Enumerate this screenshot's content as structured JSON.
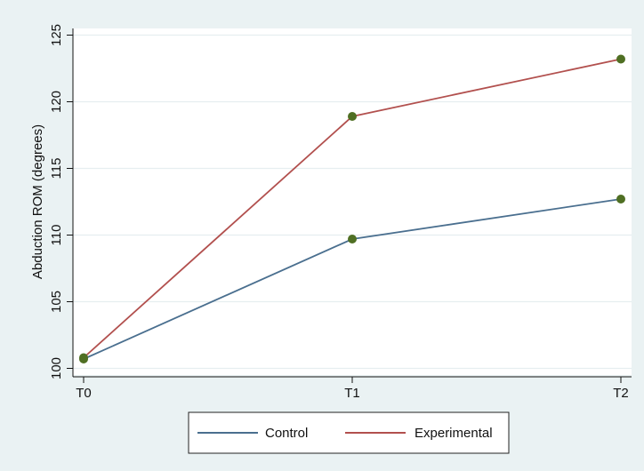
{
  "chart_data": {
    "type": "line",
    "title": "",
    "xlabel": "",
    "ylabel": "Abduction ROM (degrees)",
    "categories": [
      "T0",
      "T1",
      "T2"
    ],
    "ylim": [
      99.5,
      125.5
    ],
    "yticks": [
      100,
      105,
      110,
      115,
      120,
      125
    ],
    "grid": true,
    "legend_position": "bottom",
    "series": [
      {
        "name": "Control",
        "color": "#4a6f8f",
        "values": [
          100.7,
          109.7,
          112.7
        ]
      },
      {
        "name": "Experimental",
        "color": "#b2504e",
        "values": [
          100.8,
          118.9,
          123.2
        ]
      }
    ],
    "marker_color": "#4f6f23"
  }
}
